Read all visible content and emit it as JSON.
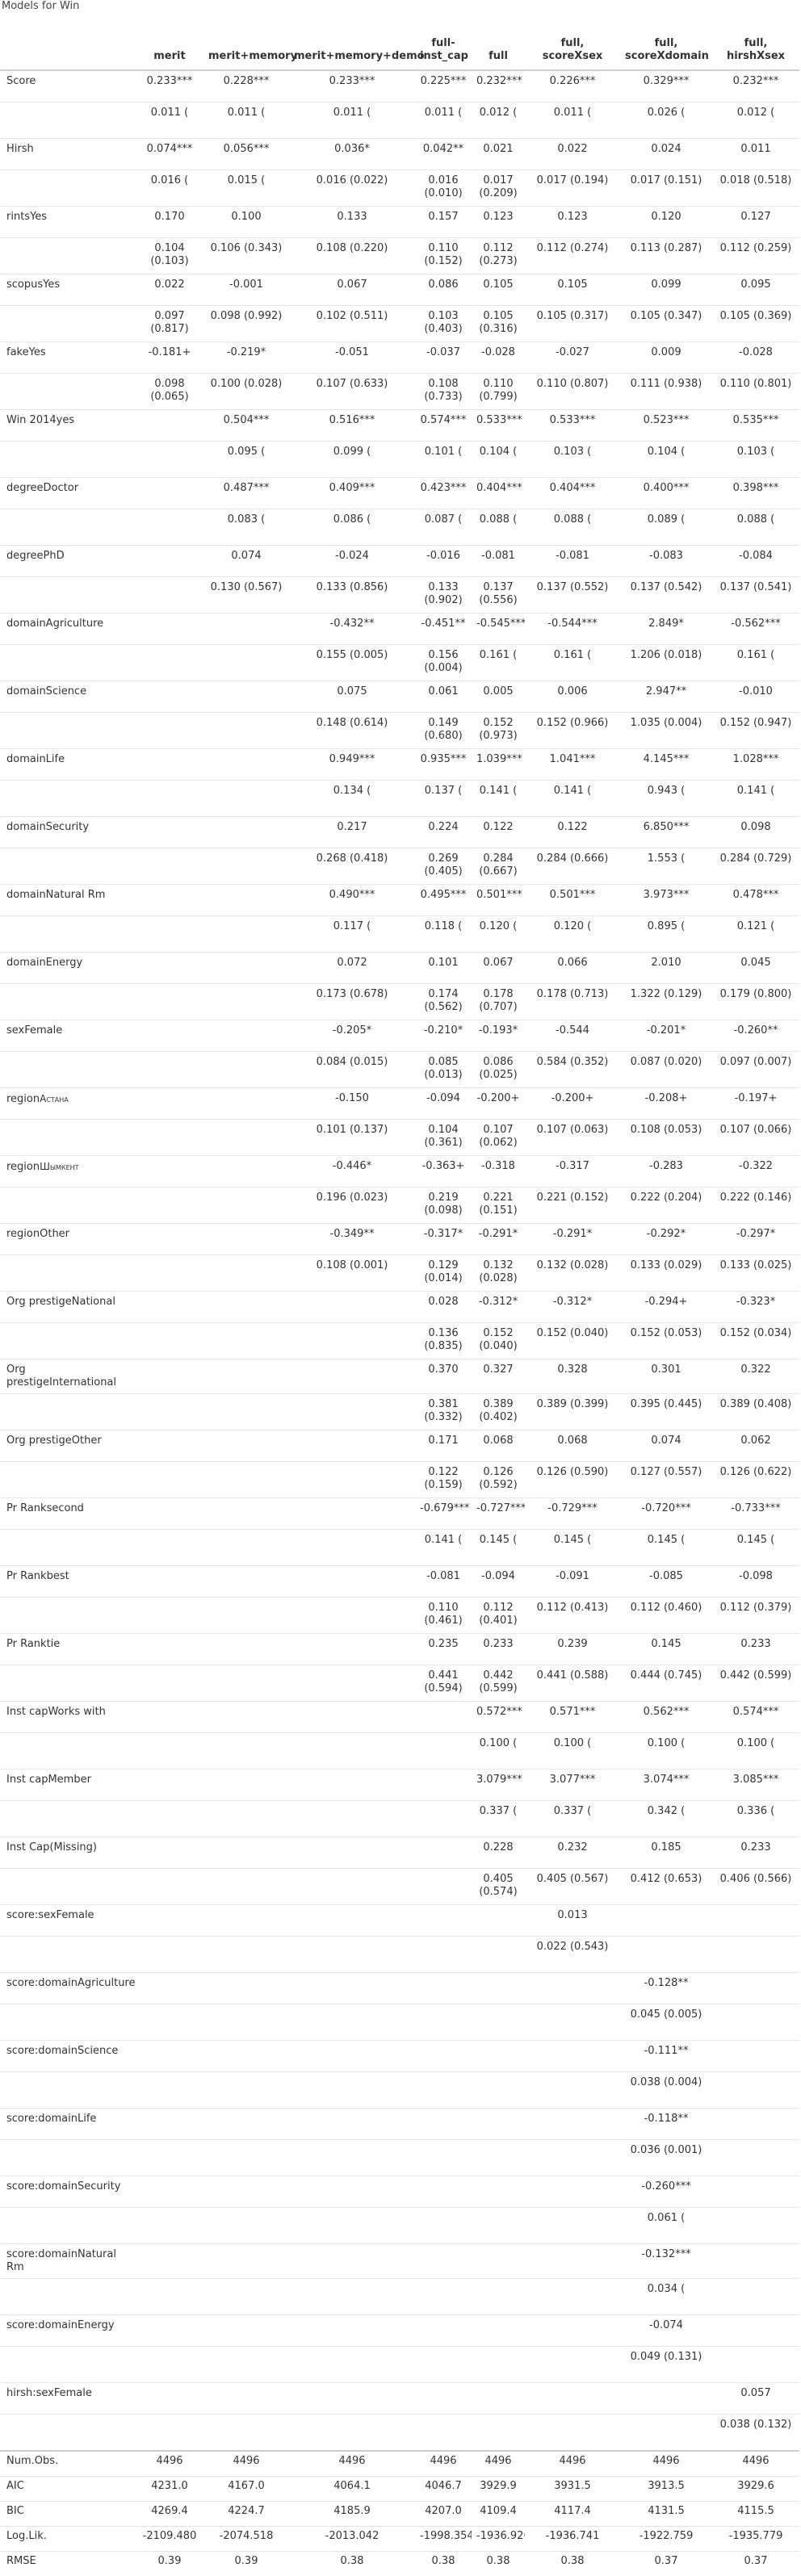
{
  "caption": "Models for Win",
  "columns": [
    "",
    "merit",
    "merit+memory",
    "merit+memory+demo",
    "full-\ninst_cap",
    "full",
    "full,\nscoreXsex",
    "full,\nscoreXdomain",
    "full,\nhirshXsex"
  ],
  "rows": [
    {
      "label": "Score",
      "coef": [
        "0.233***",
        "0.228***",
        "0.233***",
        "0.225***",
        "0.232***",
        "0.226***",
        "0.329***",
        "0.232***"
      ],
      "se": [
        "0.011 (",
        "0.011 (",
        "0.011 (",
        "0.011 (",
        "0.012 (",
        "0.011 (",
        "0.026 (",
        "0.012 ("
      ]
    },
    {
      "label": "Hirsh",
      "coef": [
        "0.074***",
        "0.056***",
        "0.036*",
        "0.042**",
        "0.021",
        "0.022",
        "0.024",
        "0.011"
      ],
      "se": [
        "0.016 (",
        "0.015 (",
        "0.016 (0.022)",
        "0.016\n(0.010)",
        "0.017\n(0.209)",
        "0.017 (0.194)",
        "0.017 (0.151)",
        "0.018 (0.518)"
      ]
    },
    {
      "label": "rintsYes",
      "coef": [
        "0.170",
        "0.100",
        "0.133",
        "0.157",
        "0.123",
        "0.123",
        "0.120",
        "0.127"
      ],
      "se": [
        "0.104\n(0.103)",
        "0.106 (0.343)",
        "0.108 (0.220)",
        "0.110\n(0.152)",
        "0.112\n(0.273)",
        "0.112 (0.274)",
        "0.113 (0.287)",
        "0.112 (0.259)"
      ]
    },
    {
      "label": "scopusYes",
      "coef": [
        "0.022",
        "-0.001",
        "0.067",
        "0.086",
        "0.105",
        "0.105",
        "0.099",
        "0.095"
      ],
      "se": [
        "0.097\n(0.817)",
        "0.098 (0.992)",
        "0.102 (0.511)",
        "0.103\n(0.403)",
        "0.105\n(0.316)",
        "0.105 (0.317)",
        "0.105 (0.347)",
        "0.105 (0.369)"
      ]
    },
    {
      "label": "fakeYes",
      "coef": [
        "-0.181+",
        "-0.219*",
        "-0.051",
        "-0.037",
        "-0.028",
        "-0.027",
        "0.009",
        "-0.028"
      ],
      "se": [
        "0.098\n(0.065)",
        "0.100 (0.028)",
        "0.107 (0.633)",
        "0.108\n(0.733)",
        "0.110\n(0.799)",
        "0.110 (0.807)",
        "0.111 (0.938)",
        "0.110 (0.801)"
      ]
    },
    {
      "label": "Win 2014yes",
      "coef": [
        "",
        "0.504***",
        "0.516***",
        "0.574***",
        "0.533***",
        "0.533***",
        "0.523***",
        "0.535***"
      ],
      "se": [
        "",
        "0.095 (",
        "0.099 (",
        "0.101 (",
        "0.104 (",
        "0.103 (",
        "0.104 (",
        "0.103 ("
      ]
    },
    {
      "label": "degreeDoctor",
      "coef": [
        "",
        "0.487***",
        "0.409***",
        "0.423***",
        "0.404***",
        "0.404***",
        "0.400***",
        "0.398***"
      ],
      "se": [
        "",
        "0.083 (",
        "0.086 (",
        "0.087 (",
        "0.088 (",
        "0.088 (",
        "0.089 (",
        "0.088 ("
      ]
    },
    {
      "label": "degreePhD",
      "coef": [
        "",
        "0.074",
        "-0.024",
        "-0.016",
        "-0.081",
        "-0.081",
        "-0.083",
        "-0.084"
      ],
      "se": [
        "",
        "0.130 (0.567)",
        "0.133 (0.856)",
        "0.133\n(0.902)",
        "0.137\n(0.556)",
        "0.137 (0.552)",
        "0.137 (0.542)",
        "0.137 (0.541)"
      ]
    },
    {
      "label": "domainAgriculture",
      "coef": [
        "",
        "",
        "-0.432**",
        "-0.451**",
        "-0.545***",
        "-0.544***",
        "2.849*",
        "-0.562***"
      ],
      "se": [
        "",
        "",
        "0.155 (0.005)",
        "0.156\n(0.004)",
        "0.161 (",
        "0.161 (",
        "1.206 (0.018)",
        "0.161 ("
      ]
    },
    {
      "label": "domainScience",
      "coef": [
        "",
        "",
        "0.075",
        "0.061",
        "0.005",
        "0.006",
        "2.947**",
        "-0.010"
      ],
      "se": [
        "",
        "",
        "0.148 (0.614)",
        "0.149\n(0.680)",
        "0.152\n(0.973)",
        "0.152 (0.966)",
        "1.035 (0.004)",
        "0.152 (0.947)"
      ]
    },
    {
      "label": "domainLife",
      "coef": [
        "",
        "",
        "0.949***",
        "0.935***",
        "1.039***",
        "1.041***",
        "4.145***",
        "1.028***"
      ],
      "se": [
        "",
        "",
        "0.134 (",
        "0.137 (",
        "0.141 (",
        "0.141 (",
        "0.943 (",
        "0.141 ("
      ]
    },
    {
      "label": "domainSecurity",
      "coef": [
        "",
        "",
        "0.217",
        "0.224",
        "0.122",
        "0.122",
        "6.850***",
        "0.098"
      ],
      "se": [
        "",
        "",
        "0.268 (0.418)",
        "0.269\n(0.405)",
        "0.284\n(0.667)",
        "0.284 (0.666)",
        "1.553 (",
        "0.284 (0.729)"
      ]
    },
    {
      "label": "domainNatural Rm",
      "coef": [
        "",
        "",
        "0.490***",
        "0.495***",
        "0.501***",
        "0.501***",
        "3.973***",
        "0.478***"
      ],
      "se": [
        "",
        "",
        "0.117 (",
        "0.118 (",
        "0.120 (",
        "0.120 (",
        "0.895 (",
        "0.121 ("
      ]
    },
    {
      "label": "domainEnergy",
      "coef": [
        "",
        "",
        "0.072",
        "0.101",
        "0.067",
        "0.066",
        "2.010",
        "0.045"
      ],
      "se": [
        "",
        "",
        "0.173 (0.678)",
        "0.174\n(0.562)",
        "0.178\n(0.707)",
        "0.178 (0.713)",
        "1.322 (0.129)",
        "0.179 (0.800)"
      ]
    },
    {
      "label": "sexFemale",
      "coef": [
        "",
        "",
        "-0.205*",
        "-0.210*",
        "-0.193*",
        "-0.544",
        "-0.201*",
        "-0.260**"
      ],
      "se": [
        "",
        "",
        "0.084 (0.015)",
        "0.085\n(0.013)",
        "0.086\n(0.025)",
        "0.584 (0.352)",
        "0.087 (0.020)",
        "0.097 (0.007)"
      ]
    },
    {
      "label": "region",
      "label_sc": "Астана",
      "coef": [
        "",
        "",
        "-0.150",
        "-0.094",
        "-0.200+",
        "-0.200+",
        "-0.208+",
        "-0.197+"
      ],
      "se": [
        "",
        "",
        "0.101 (0.137)",
        "0.104\n(0.361)",
        "0.107\n(0.062)",
        "0.107 (0.063)",
        "0.108 (0.053)",
        "0.107 (0.066)"
      ]
    },
    {
      "label": "region",
      "label_sc": "Шымкент",
      "coef": [
        "",
        "",
        "-0.446*",
        "-0.363+",
        "-0.318",
        "-0.317",
        "-0.283",
        "-0.322"
      ],
      "se": [
        "",
        "",
        "0.196 (0.023)",
        "0.219\n(0.098)",
        "0.221\n(0.151)",
        "0.221 (0.152)",
        "0.222 (0.204)",
        "0.222 (0.146)"
      ]
    },
    {
      "label": "regionOther",
      "coef": [
        "",
        "",
        "-0.349**",
        "-0.317*",
        "-0.291*",
        "-0.291*",
        "-0.292*",
        "-0.297*"
      ],
      "se": [
        "",
        "",
        "0.108 (0.001)",
        "0.129\n(0.014)",
        "0.132\n(0.028)",
        "0.132 (0.028)",
        "0.133 (0.029)",
        "0.133 (0.025)"
      ]
    },
    {
      "label": "Org prestigeNational",
      "coef": [
        "",
        "",
        "",
        "0.028",
        "-0.312*",
        "-0.312*",
        "-0.294+",
        "-0.323*"
      ],
      "se": [
        "",
        "",
        "",
        "0.136\n(0.835)",
        "0.152\n(0.040)",
        "0.152 (0.040)",
        "0.152 (0.053)",
        "0.152 (0.034)"
      ]
    },
    {
      "label": "Org\nprestigeInternational",
      "coef": [
        "",
        "",
        "",
        "0.370",
        "0.327",
        "0.328",
        "0.301",
        "0.322"
      ],
      "se": [
        "",
        "",
        "",
        "0.381\n(0.332)",
        "0.389\n(0.402)",
        "0.389 (0.399)",
        "0.395 (0.445)",
        "0.389 (0.408)"
      ]
    },
    {
      "label": "Org prestigeOther",
      "coef": [
        "",
        "",
        "",
        "0.171",
        "0.068",
        "0.068",
        "0.074",
        "0.062"
      ],
      "se": [
        "",
        "",
        "",
        "0.122\n(0.159)",
        "0.126\n(0.592)",
        "0.126 (0.590)",
        "0.127 (0.557)",
        "0.126 (0.622)"
      ]
    },
    {
      "label": "Pr Ranksecond",
      "coef": [
        "",
        "",
        "",
        "-0.679***",
        "-0.727***",
        "-0.729***",
        "-0.720***",
        "-0.733***"
      ],
      "se": [
        "",
        "",
        "",
        "0.141 (",
        "0.145 (",
        "0.145 (",
        "0.145 (",
        "0.145 ("
      ]
    },
    {
      "label": "Pr Rankbest",
      "coef": [
        "",
        "",
        "",
        "-0.081",
        "-0.094",
        "-0.091",
        "-0.085",
        "-0.098"
      ],
      "se": [
        "",
        "",
        "",
        "0.110\n(0.461)",
        "0.112\n(0.401)",
        "0.112 (0.413)",
        "0.112 (0.460)",
        "0.112 (0.379)"
      ]
    },
    {
      "label": "Pr Ranktie",
      "coef": [
        "",
        "",
        "",
        "0.235",
        "0.233",
        "0.239",
        "0.145",
        "0.233"
      ],
      "se": [
        "",
        "",
        "",
        "0.441\n(0.594)",
        "0.442\n(0.599)",
        "0.441 (0.588)",
        "0.444 (0.745)",
        "0.442 (0.599)"
      ]
    },
    {
      "label": "Inst capWorks with",
      "coef": [
        "",
        "",
        "",
        "",
        "0.572***",
        "0.571***",
        "0.562***",
        "0.574***"
      ],
      "se": [
        "",
        "",
        "",
        "",
        "0.100 (",
        "0.100 (",
        "0.100 (",
        "0.100 ("
      ]
    },
    {
      "label": "Inst capMember",
      "coef": [
        "",
        "",
        "",
        "",
        "3.079***",
        "3.077***",
        "3.074***",
        "3.085***"
      ],
      "se": [
        "",
        "",
        "",
        "",
        "0.337 (",
        "0.337 (",
        "0.342 (",
        "0.336 ("
      ]
    },
    {
      "label": "Inst Cap(Missing)",
      "coef": [
        "",
        "",
        "",
        "",
        "0.228",
        "0.232",
        "0.185",
        "0.233"
      ],
      "se": [
        "",
        "",
        "",
        "",
        "0.405\n(0.574)",
        "0.405 (0.567)",
        "0.412 (0.653)",
        "0.406 (0.566)"
      ]
    },
    {
      "label": "score:sexFemale",
      "coef": [
        "",
        "",
        "",
        "",
        "",
        "0.013",
        "",
        ""
      ],
      "se": [
        "",
        "",
        "",
        "",
        "",
        "0.022 (0.543)",
        "",
        ""
      ]
    },
    {
      "label": "score:domainAgriculture",
      "coef": [
        "",
        "",
        "",
        "",
        "",
        "",
        "-0.128**",
        ""
      ],
      "se": [
        "",
        "",
        "",
        "",
        "",
        "",
        "0.045 (0.005)",
        ""
      ]
    },
    {
      "label": "score:domainScience",
      "coef": [
        "",
        "",
        "",
        "",
        "",
        "",
        "-0.111**",
        ""
      ],
      "se": [
        "",
        "",
        "",
        "",
        "",
        "",
        "0.038 (0.004)",
        ""
      ]
    },
    {
      "label": "score:domainLife",
      "coef": [
        "",
        "",
        "",
        "",
        "",
        "",
        "-0.118**",
        ""
      ],
      "se": [
        "",
        "",
        "",
        "",
        "",
        "",
        "0.036 (0.001)",
        ""
      ]
    },
    {
      "label": "score:domainSecurity",
      "coef": [
        "",
        "",
        "",
        "",
        "",
        "",
        "-0.260***",
        ""
      ],
      "se": [
        "",
        "",
        "",
        "",
        "",
        "",
        "0.061 (",
        ""
      ]
    },
    {
      "label": "score:domainNatural\nRm",
      "coef": [
        "",
        "",
        "",
        "",
        "",
        "",
        "-0.132***",
        ""
      ],
      "se": [
        "",
        "",
        "",
        "",
        "",
        "",
        "0.034 (",
        ""
      ]
    },
    {
      "label": "score:domainEnergy",
      "coef": [
        "",
        "",
        "",
        "",
        "",
        "",
        "-0.074",
        ""
      ],
      "se": [
        "",
        "",
        "",
        "",
        "",
        "",
        "0.049 (0.131)",
        ""
      ]
    },
    {
      "label": "hirsh:sexFemale",
      "coef": [
        "",
        "",
        "",
        "",
        "",
        "",
        "",
        "0.057"
      ],
      "se": [
        "",
        "",
        "",
        "",
        "",
        "",
        "",
        "0.038 (0.132)"
      ]
    }
  ],
  "gof": [
    {
      "label": "Num.Obs.",
      "values": [
        "4496",
        "4496",
        "4496",
        "4496",
        "4496",
        "4496",
        "4496",
        "4496"
      ]
    },
    {
      "label": "AIC",
      "values": [
        "4231.0",
        "4167.0",
        "4064.1",
        "4046.7",
        "3929.9",
        "3931.5",
        "3913.5",
        "3929.6"
      ]
    },
    {
      "label": "BIC",
      "values": [
        "4269.4",
        "4224.7",
        "4185.9",
        "4207.0",
        "4109.4",
        "4117.4",
        "4131.5",
        "4115.5"
      ]
    },
    {
      "label": "Log.Lik.",
      "values": [
        "-2109.480",
        "-2074.518",
        "-2013.042",
        "-1998.354",
        "-1936.926",
        "-1936.741",
        "-1922.759",
        "-1935.779"
      ]
    },
    {
      "label": "RMSE",
      "values": [
        "0.39",
        "0.39",
        "0.38",
        "0.38",
        "0.38",
        "0.38",
        "0.37",
        "0.37"
      ]
    }
  ]
}
